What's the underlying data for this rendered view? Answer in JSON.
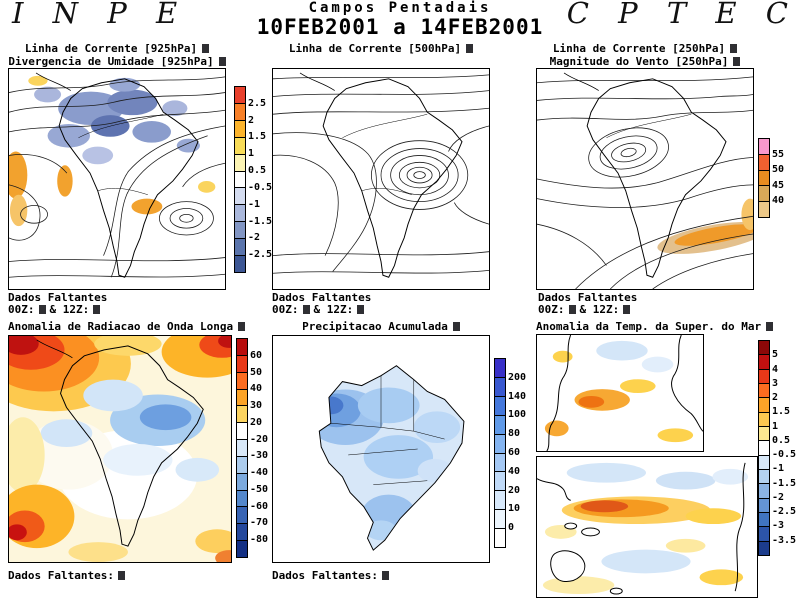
{
  "header": {
    "inpe": "I N P E",
    "title": "Campos Pentadais",
    "date_range": "10FEB2001 a 14FEB2001",
    "cptec": "C P T E C"
  },
  "panels": {
    "stream925": {
      "title1": "Linha de Corrente [925hPa]",
      "title2": "Divergencia de Umidade [925hPa]",
      "footer_line1": "Dados Faltantes",
      "footer_00z": "00Z:",
      "footer_12z": "& 12Z:",
      "colorbar": {
        "ticks": [
          "2.5",
          "2",
          "1.5",
          "1",
          "0.5",
          "-0.5",
          "-1",
          "-1.5",
          "-2",
          "-2.5"
        ],
        "colors": [
          "#e8402c",
          "#f88028",
          "#fcb42c",
          "#f8dc58",
          "#fcf4b4",
          "#ffffff",
          "#d4dcf0",
          "#aab8dc",
          "#8296c4",
          "#5a74ac",
          "#3c5694"
        ]
      }
    },
    "stream500": {
      "title1": "Linha de Corrente [500hPa]",
      "footer_line1": "Dados Faltantes",
      "footer_00z": "00Z:",
      "footer_12z": "& 12Z:"
    },
    "stream250": {
      "title1": "Linha de Corrente [250hPa]",
      "title2": "Magnitude do Vento [250hPa]",
      "footer_line1": "Dados Faltantes",
      "footer_00z": "00Z:",
      "footer_12z": "& 12Z:",
      "colorbar": {
        "ticks": [
          "55",
          "50",
          "45",
          "40"
        ],
        "colors": [
          "#f898cc",
          "#f06030",
          "#e88c20",
          "#d8a858",
          "#ecc888"
        ]
      }
    },
    "olr": {
      "title1": "Anomalia de Radiacao de Onda Longa",
      "footer_label": "Dados Faltantes:",
      "colorbar": {
        "ticks": [
          "60",
          "50",
          "40",
          "30",
          "20",
          "-20",
          "-30",
          "-40",
          "-50",
          "-60",
          "-70",
          "-80"
        ],
        "colors": [
          "#b80c0c",
          "#e83818",
          "#fc6c20",
          "#fca428",
          "#fcd460",
          "#ffffff",
          "#d8e8f8",
          "#accced",
          "#7caade",
          "#5488cc",
          "#3864b4",
          "#24489c",
          "#143084"
        ]
      }
    },
    "precip": {
      "title1": "Precipitacao Acumulada",
      "footer_label": "Dados Faltantes:",
      "colorbar": {
        "ticks": [
          "200",
          "140",
          "100",
          "80",
          "60",
          "40",
          "20",
          "10",
          "0"
        ],
        "colors": [
          "#3830c8",
          "#3858d0",
          "#4478dc",
          "#609ae8",
          "#84b4f0",
          "#a4c8f4",
          "#c0daf8",
          "#d8e9fb",
          "#ecf5fd",
          "#ffffff"
        ]
      }
    },
    "sst": {
      "title1": "Anomalia da Temp. da Super. do Mar",
      "colorbar": {
        "ticks": [
          "5",
          "4",
          "3",
          "2",
          "1.5",
          "1",
          "0.5",
          "-0.5",
          "-1",
          "-1.5",
          "-2",
          "-2.5",
          "-3",
          "-3.5"
        ],
        "colors": [
          "#8c0808",
          "#c01010",
          "#e83818",
          "#fc6c20",
          "#fca428",
          "#fcc850",
          "#fce890",
          "#ffffff",
          "#d8e8f8",
          "#b4d2f0",
          "#8cb4e4",
          "#6494d4",
          "#4074c0",
          "#2c54a8",
          "#1c3c8c"
        ]
      }
    }
  }
}
